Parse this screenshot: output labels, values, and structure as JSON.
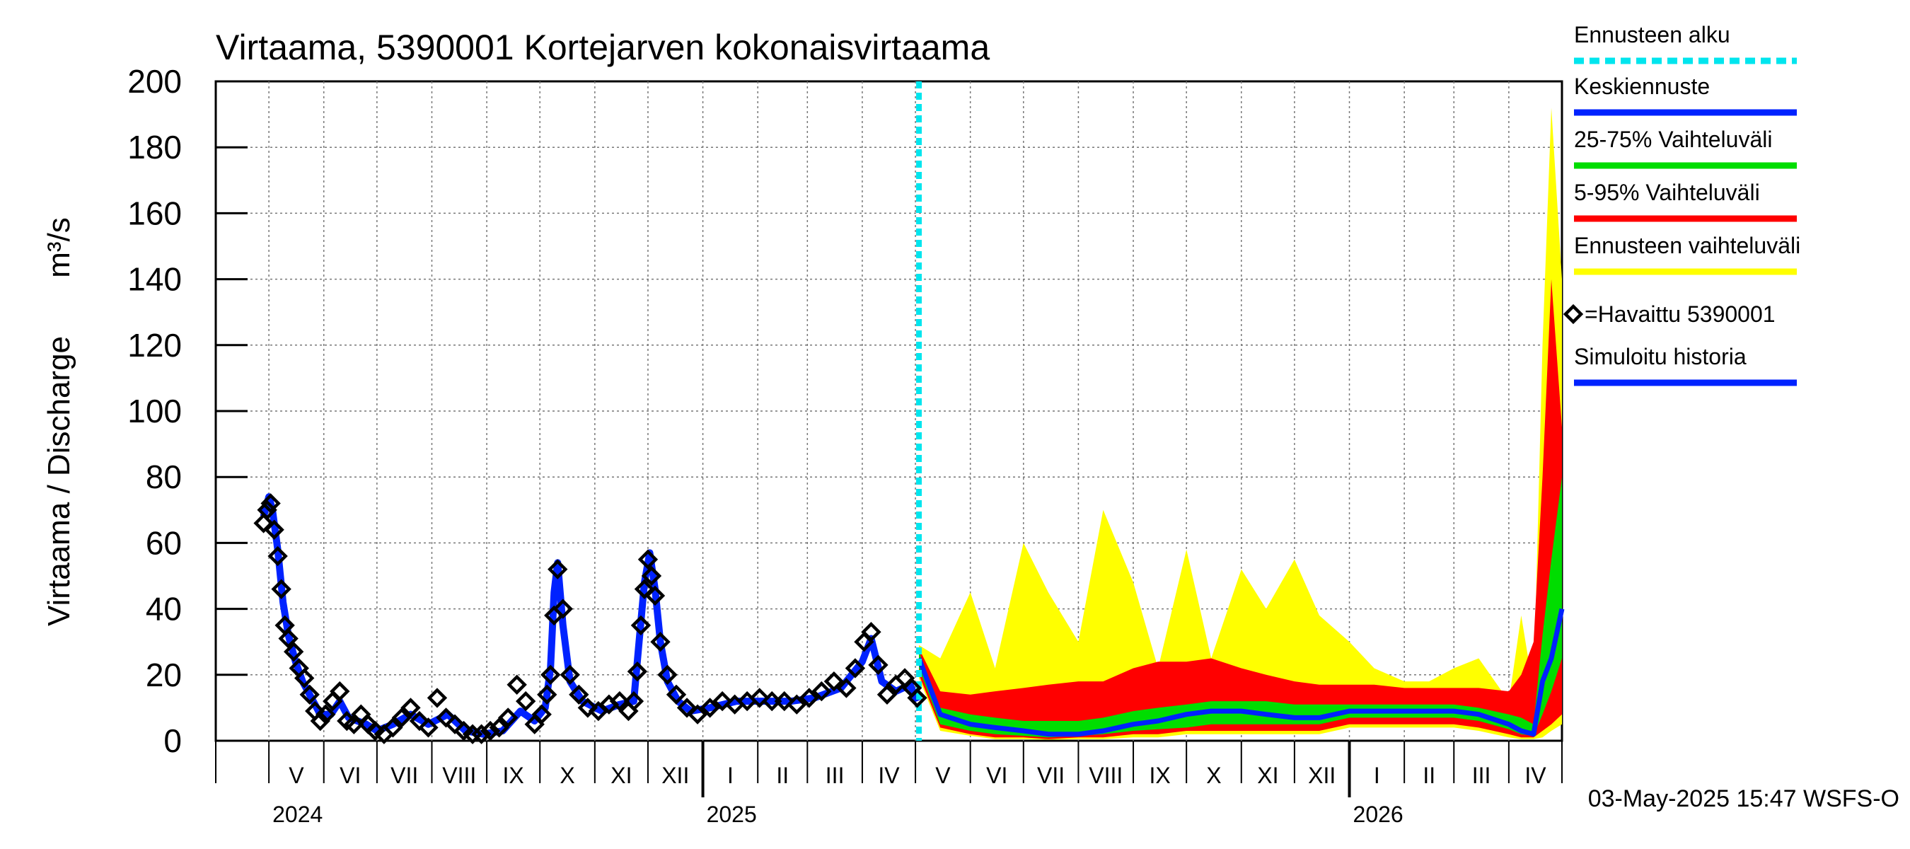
{
  "chart_data": {
    "type": "area",
    "title": "Virtaama, 5390001 Kortejarven kokonaisvirtaama",
    "ylabel": "Virtaama / Discharge",
    "yunit": "m³/s",
    "ylim": [
      0,
      200
    ],
    "yticks": [
      0,
      20,
      40,
      60,
      80,
      100,
      120,
      140,
      160,
      180,
      200
    ],
    "xlim": [
      "2024-04-01",
      "2026-05-01"
    ],
    "grid": true,
    "months": [
      {
        "start": "2024-04-01",
        "label": ""
      },
      {
        "start": "2024-05-01",
        "label": "V"
      },
      {
        "start": "2024-06-01",
        "label": "VI"
      },
      {
        "start": "2024-07-01",
        "label": "VII"
      },
      {
        "start": "2024-08-01",
        "label": "VIII"
      },
      {
        "start": "2024-09-01",
        "label": "IX"
      },
      {
        "start": "2024-10-01",
        "label": "X"
      },
      {
        "start": "2024-11-01",
        "label": "XI"
      },
      {
        "start": "2024-12-01",
        "label": "XII"
      },
      {
        "start": "2025-01-01",
        "label": "I"
      },
      {
        "start": "2025-02-01",
        "label": "II"
      },
      {
        "start": "2025-03-01",
        "label": "III"
      },
      {
        "start": "2025-04-01",
        "label": "IV"
      },
      {
        "start": "2025-05-01",
        "label": "V"
      },
      {
        "start": "2025-06-01",
        "label": "VI"
      },
      {
        "start": "2025-07-01",
        "label": "VII"
      },
      {
        "start": "2025-08-01",
        "label": "VIII"
      },
      {
        "start": "2025-09-01",
        "label": "IX"
      },
      {
        "start": "2025-10-01",
        "label": "X"
      },
      {
        "start": "2025-11-01",
        "label": "XI"
      },
      {
        "start": "2025-12-01",
        "label": "XII"
      },
      {
        "start": "2026-01-01",
        "label": "I"
      },
      {
        "start": "2026-02-01",
        "label": "II"
      },
      {
        "start": "2026-03-01",
        "label": "III"
      },
      {
        "start": "2026-04-01",
        "label": "IV"
      }
    ],
    "years": [
      {
        "date": "2024-05-01",
        "label": "2024"
      },
      {
        "date": "2025-01-01",
        "label": "2025"
      },
      {
        "date": "2026-01-01",
        "label": "2026"
      }
    ],
    "forecast_start": "2025-05-03",
    "legend_placement": "right",
    "legend": [
      {
        "label": "Ennusteen alku",
        "color": "#00e5ee",
        "style": "dashed"
      },
      {
        "label": "Keskiennuste",
        "color": "#0022ff",
        "style": "solid"
      },
      {
        "label": "25-75% Vaihteluväli",
        "color": "#00dd00",
        "style": "solid"
      },
      {
        "label": "5-95% Vaihteluväli",
        "color": "#ff0000",
        "style": "solid"
      },
      {
        "label": "Ennusteen vaihteluväli",
        "color": "#ffff00",
        "style": "solid"
      },
      {
        "label": "=Havaittu 5390001",
        "color": "#000000",
        "style": "marker"
      },
      {
        "label": "Simuloitu historia",
        "color": "#0022ff",
        "style": "solid"
      }
    ],
    "colors": {
      "observed": "#000000",
      "simulated": "#0022ff",
      "median": "#0022ff",
      "band_25_75": "#00dd00",
      "band_5_95": "#ff0000",
      "band_full": "#ffff00",
      "forecast_start": "#00e5ee"
    },
    "observed": {
      "x": [
        "2024-04-28",
        "2024-04-30",
        "2024-05-02",
        "2024-05-04",
        "2024-05-06",
        "2024-05-08",
        "2024-05-10",
        "2024-05-12",
        "2024-05-15",
        "2024-05-18",
        "2024-05-21",
        "2024-05-24",
        "2024-05-27",
        "2024-05-30",
        "2024-06-02",
        "2024-06-06",
        "2024-06-10",
        "2024-06-14",
        "2024-06-18",
        "2024-06-22",
        "2024-06-26",
        "2024-06-30",
        "2024-07-05",
        "2024-07-10",
        "2024-07-15",
        "2024-07-20",
        "2024-07-25",
        "2024-07-30",
        "2024-08-04",
        "2024-08-09",
        "2024-08-14",
        "2024-08-19",
        "2024-08-24",
        "2024-08-29",
        "2024-09-03",
        "2024-09-08",
        "2024-09-13",
        "2024-09-18",
        "2024-09-23",
        "2024-09-28",
        "2024-10-02",
        "2024-10-05",
        "2024-10-07",
        "2024-10-09",
        "2024-10-11",
        "2024-10-14",
        "2024-10-18",
        "2024-10-23",
        "2024-10-28",
        "2024-11-03",
        "2024-11-09",
        "2024-11-15",
        "2024-11-20",
        "2024-11-23",
        "2024-11-25",
        "2024-11-27",
        "2024-11-29",
        "2024-12-01",
        "2024-12-03",
        "2024-12-05",
        "2024-12-08",
        "2024-12-12",
        "2024-12-17",
        "2024-12-23",
        "2024-12-29",
        "2025-01-05",
        "2025-01-12",
        "2025-01-19",
        "2025-01-26",
        "2025-02-02",
        "2025-02-09",
        "2025-02-16",
        "2025-02-23",
        "2025-03-02",
        "2025-03-09",
        "2025-03-16",
        "2025-03-23",
        "2025-03-28",
        "2025-04-02",
        "2025-04-06",
        "2025-04-10",
        "2025-04-15",
        "2025-04-20",
        "2025-04-25",
        "2025-04-29",
        "2025-05-02"
      ],
      "y": [
        66,
        70,
        72,
        64,
        56,
        46,
        35,
        31,
        27,
        22,
        19,
        14,
        9,
        6,
        8,
        12,
        15,
        6,
        5,
        8,
        5,
        3,
        2,
        4,
        7,
        10,
        6,
        4,
        13,
        7,
        5,
        3,
        2,
        2,
        3,
        4,
        7,
        17,
        12,
        5,
        8,
        14,
        20,
        38,
        52,
        40,
        20,
        14,
        10,
        9,
        11,
        12,
        9,
        12,
        21,
        35,
        46,
        55,
        50,
        44,
        30,
        20,
        14,
        10,
        8,
        10,
        12,
        11,
        12,
        13,
        12,
        12,
        11,
        13,
        15,
        18,
        16,
        22,
        30,
        33,
        23,
        14,
        17,
        19,
        16,
        13
      ]
    },
    "simulated": {
      "x": [
        "2024-04-28",
        "2024-05-01",
        "2024-05-03",
        "2024-05-06",
        "2024-05-09",
        "2024-05-12",
        "2024-05-16",
        "2024-05-20",
        "2024-05-25",
        "2024-05-30",
        "2024-06-05",
        "2024-06-10",
        "2024-06-15",
        "2024-06-20",
        "2024-06-25",
        "2024-07-01",
        "2024-07-10",
        "2024-07-20",
        "2024-07-30",
        "2024-08-10",
        "2024-08-20",
        "2024-08-30",
        "2024-09-10",
        "2024-09-20",
        "2024-09-28",
        "2024-10-04",
        "2024-10-07",
        "2024-10-09",
        "2024-10-11",
        "2024-10-14",
        "2024-10-18",
        "2024-10-25",
        "2024-11-05",
        "2024-11-15",
        "2024-11-23",
        "2024-11-26",
        "2024-11-29",
        "2024-12-02",
        "2024-12-05",
        "2024-12-08",
        "2024-12-12",
        "2024-12-18",
        "2024-12-25",
        "2025-01-05",
        "2025-01-20",
        "2025-02-05",
        "2025-02-20",
        "2025-03-05",
        "2025-03-20",
        "2025-04-01",
        "2025-04-06",
        "2025-04-12",
        "2025-04-20",
        "2025-04-28",
        "2025-05-02"
      ],
      "y": [
        68,
        74,
        70,
        58,
        42,
        32,
        24,
        18,
        13,
        8,
        8,
        12,
        7,
        6,
        5,
        3,
        5,
        8,
        5,
        8,
        3,
        2,
        3,
        9,
        6,
        10,
        22,
        45,
        54,
        35,
        18,
        12,
        9,
        11,
        12,
        30,
        48,
        57,
        46,
        30,
        18,
        12,
        9,
        10,
        12,
        12,
        12,
        13,
        16,
        24,
        31,
        18,
        15,
        17,
        12
      ]
    },
    "forecast": {
      "x": [
        "2025-05-03",
        "2025-05-15",
        "2025-06-01",
        "2025-06-15",
        "2025-07-01",
        "2025-07-15",
        "2025-08-01",
        "2025-08-15",
        "2025-09-01",
        "2025-09-15",
        "2025-10-01",
        "2025-10-15",
        "2025-11-01",
        "2025-11-15",
        "2025-12-01",
        "2025-12-15",
        "2026-01-01",
        "2026-01-15",
        "2026-02-01",
        "2026-02-15",
        "2026-03-01",
        "2026-03-15",
        "2026-04-01",
        "2026-04-08",
        "2026-04-15",
        "2026-04-20",
        "2026-04-25",
        "2026-05-01"
      ],
      "median": [
        25,
        8,
        5,
        4,
        3,
        2,
        2,
        3,
        5,
        6,
        8,
        9,
        9,
        8,
        7,
        7,
        9,
        9,
        9,
        9,
        9,
        8,
        5,
        3,
        2,
        18,
        25,
        40
      ],
      "p25": [
        22,
        5,
        3,
        2,
        1.5,
        1,
        1.5,
        2,
        3,
        3.5,
        4,
        5,
        5,
        5,
        5,
        5,
        7,
        7,
        7,
        7,
        7,
        6,
        3.5,
        2,
        1.5,
        8,
        15,
        25
      ],
      "p75": [
        27,
        10,
        8,
        7,
        6,
        6,
        6,
        7,
        9,
        10,
        11,
        12,
        12,
        12,
        11,
        11,
        11,
        11,
        11,
        11,
        11,
        10,
        8,
        7,
        5,
        32,
        55,
        80
      ],
      "p5": [
        20,
        4,
        2,
        1,
        1,
        0.5,
        1,
        1,
        2,
        2,
        3,
        3,
        3,
        3,
        3,
        3,
        5,
        5,
        5,
        5,
        5,
        4,
        2,
        1,
        1,
        3,
        5,
        8
      ],
      "p95": [
        28,
        15,
        14,
        15,
        16,
        17,
        18,
        18,
        22,
        24,
        24,
        25,
        22,
        20,
        18,
        17,
        17,
        17,
        16,
        16,
        16,
        16,
        15,
        20,
        30,
        80,
        140,
        95
      ],
      "min": [
        19,
        3,
        1.5,
        0.5,
        0.5,
        0.3,
        0.5,
        0.5,
        1,
        1,
        2,
        2,
        2,
        2,
        2,
        2,
        4,
        4,
        4,
        4,
        4,
        3,
        1,
        0.5,
        0.5,
        1,
        3,
        5
      ],
      "max": [
        29,
        25,
        45,
        22,
        60,
        45,
        30,
        70,
        48,
        22,
        58,
        25,
        52,
        40,
        55,
        38,
        30,
        22,
        18,
        18,
        22,
        25,
        12,
        38,
        15,
        120,
        192,
        140
      ]
    }
  }
}
